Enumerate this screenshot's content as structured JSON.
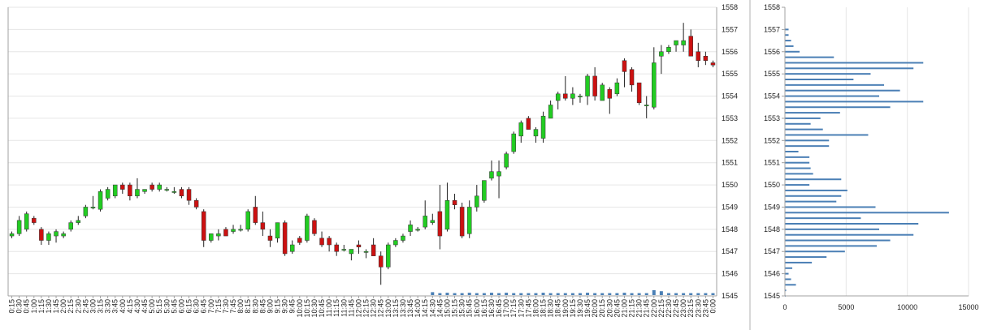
{
  "chart_data": [
    {
      "type": "candlestick",
      "title": "",
      "xlabel": "",
      "ylabel": "",
      "ylim": [
        1545,
        1558
      ],
      "yticks": [
        1545,
        1546,
        1547,
        1548,
        1549,
        1550,
        1551,
        1552,
        1553,
        1554,
        1555,
        1556,
        1557,
        1558
      ],
      "grid": true,
      "colors": {
        "up": "#22cc22",
        "down": "#cc1111",
        "wick": "#222222",
        "volume": "#4a7fb5"
      },
      "times": [
        "0:15",
        "0:30",
        "0:45",
        "1:00",
        "1:15",
        "1:30",
        "1:45",
        "2:00",
        "2:15",
        "2:30",
        "2:45",
        "3:00",
        "3:15",
        "3:30",
        "3:45",
        "4:00",
        "4:15",
        "4:30",
        "4:45",
        "5:00",
        "5:15",
        "5:30",
        "5:45",
        "6:00",
        "6:15",
        "6:30",
        "6:45",
        "7:00",
        "7:15",
        "7:30",
        "7:45",
        "8:00",
        "8:15",
        "8:30",
        "8:45",
        "9:00",
        "9:15",
        "9:30",
        "9:45",
        "10:00",
        "10:15",
        "10:30",
        "10:45",
        "11:00",
        "11:15",
        "11:30",
        "11:45",
        "12:00",
        "12:15",
        "12:30",
        "12:45",
        "13:00",
        "13:15",
        "13:30",
        "13:45",
        "14:00",
        "14:15",
        "14:30",
        "14:45",
        "15:00",
        "15:15",
        "15:30",
        "15:45",
        "16:00",
        "16:15",
        "16:30",
        "16:45",
        "17:00",
        "17:15",
        "17:30",
        "17:45",
        "18:00",
        "18:15",
        "18:30",
        "18:45",
        "19:00",
        "19:15",
        "19:30",
        "19:45",
        "20:00",
        "20:15",
        "20:30",
        "20:45",
        "21:00",
        "21:15",
        "21:30",
        "21:45",
        "22:00",
        "22:15",
        "22:30",
        "22:45",
        "23:00",
        "23:15",
        "23:30",
        "23:45",
        "0:00"
      ],
      "ohlc": [
        [
          1547.7,
          1547.9,
          1547.6,
          1547.8
        ],
        [
          1547.8,
          1548.6,
          1547.7,
          1548.4
        ],
        [
          1548.0,
          1548.8,
          1547.9,
          1548.7
        ],
        [
          1548.5,
          1548.6,
          1548.2,
          1548.3
        ],
        [
          1548.0,
          1548.1,
          1547.3,
          1547.5
        ],
        [
          1547.5,
          1547.9,
          1547.3,
          1547.8
        ],
        [
          1547.7,
          1548.0,
          1547.4,
          1547.9
        ],
        [
          1547.7,
          1547.9,
          1547.6,
          1547.8
        ],
        [
          1548.0,
          1548.4,
          1547.9,
          1548.3
        ],
        [
          1548.3,
          1548.6,
          1548.2,
          1548.4
        ],
        [
          1548.6,
          1549.1,
          1548.5,
          1549.0
        ],
        [
          1549.0,
          1549.5,
          1548.9,
          1549.0
        ],
        [
          1548.9,
          1549.8,
          1548.8,
          1549.7
        ],
        [
          1549.4,
          1549.9,
          1549.3,
          1549.8
        ],
        [
          1549.5,
          1550.0,
          1549.4,
          1550.0
        ],
        [
          1550.0,
          1550.1,
          1549.6,
          1549.8
        ],
        [
          1550.0,
          1550.1,
          1549.3,
          1549.5
        ],
        [
          1549.5,
          1550.3,
          1549.4,
          1549.8
        ],
        [
          1549.7,
          1549.8,
          1549.6,
          1549.8
        ],
        [
          1550.0,
          1550.1,
          1549.7,
          1549.8
        ],
        [
          1549.8,
          1550.1,
          1549.7,
          1550.0
        ],
        [
          1549.8,
          1549.9,
          1549.7,
          1549.8
        ],
        [
          1549.7,
          1549.9,
          1549.6,
          1549.7
        ],
        [
          1549.8,
          1549.9,
          1549.4,
          1549.5
        ],
        [
          1549.8,
          1549.9,
          1549.1,
          1549.3
        ],
        [
          1549.3,
          1549.4,
          1548.9,
          1549.0
        ],
        [
          1548.8,
          1548.9,
          1547.2,
          1547.5
        ],
        [
          1547.5,
          1547.8,
          1547.4,
          1547.8
        ],
        [
          1547.7,
          1548.0,
          1547.5,
          1547.8
        ],
        [
          1548.0,
          1548.1,
          1547.7,
          1547.7
        ],
        [
          1547.9,
          1548.2,
          1547.8,
          1548.0
        ],
        [
          1548.0,
          1548.2,
          1547.9,
          1548.0
        ],
        [
          1548.0,
          1548.9,
          1547.9,
          1548.8
        ],
        [
          1549.0,
          1549.5,
          1548.2,
          1548.3
        ],
        [
          1548.3,
          1548.8,
          1547.7,
          1548.0
        ],
        [
          1547.7,
          1548.0,
          1547.2,
          1547.5
        ],
        [
          1547.6,
          1548.3,
          1547.4,
          1548.3
        ],
        [
          1548.3,
          1548.4,
          1546.8,
          1546.9
        ],
        [
          1547.0,
          1547.5,
          1546.9,
          1547.3
        ],
        [
          1547.6,
          1547.7,
          1547.3,
          1547.4
        ],
        [
          1547.5,
          1548.7,
          1547.4,
          1548.6
        ],
        [
          1548.4,
          1548.5,
          1547.7,
          1547.8
        ],
        [
          1547.6,
          1547.9,
          1547.2,
          1547.3
        ],
        [
          1547.6,
          1547.7,
          1547.0,
          1547.3
        ],
        [
          1547.3,
          1547.4,
          1546.8,
          1547.0
        ],
        [
          1547.1,
          1547.3,
          1547.0,
          1547.1
        ],
        [
          1546.9,
          1547.1,
          1546.6,
          1547.1
        ],
        [
          1547.3,
          1547.5,
          1546.9,
          1547.2
        ],
        [
          1547.0,
          1547.1,
          1546.7,
          1547.0
        ],
        [
          1547.3,
          1547.6,
          1546.9,
          1546.8
        ],
        [
          1546.8,
          1547.0,
          1545.5,
          1546.3
        ],
        [
          1546.3,
          1547.4,
          1546.2,
          1547.3
        ],
        [
          1547.3,
          1547.6,
          1547.2,
          1547.5
        ],
        [
          1547.5,
          1547.8,
          1547.4,
          1547.7
        ],
        [
          1547.9,
          1548.4,
          1547.7,
          1548.2
        ],
        [
          1548.0,
          1548.1,
          1547.9,
          1548.0
        ],
        [
          1548.1,
          1549.3,
          1548.0,
          1548.6
        ],
        [
          1548.3,
          1548.7,
          1548.2,
          1548.4
        ],
        [
          1548.8,
          1550.0,
          1547.1,
          1547.7
        ],
        [
          1548.0,
          1550.1,
          1547.9,
          1549.3
        ],
        [
          1549.3,
          1549.6,
          1548.9,
          1549.1
        ],
        [
          1549.0,
          1549.2,
          1547.6,
          1547.7
        ],
        [
          1547.8,
          1549.3,
          1547.6,
          1549.0
        ],
        [
          1549.0,
          1550.0,
          1548.8,
          1549.5
        ],
        [
          1549.3,
          1550.2,
          1549.2,
          1550.2
        ],
        [
          1550.3,
          1551.1,
          1550.2,
          1550.6
        ],
        [
          1550.4,
          1551.1,
          1549.4,
          1550.6
        ],
        [
          1550.8,
          1551.5,
          1550.7,
          1551.4
        ],
        [
          1551.5,
          1552.4,
          1551.4,
          1552.3
        ],
        [
          1552.2,
          1552.9,
          1551.9,
          1552.8
        ],
        [
          1553.0,
          1553.1,
          1552.5,
          1552.5
        ],
        [
          1552.2,
          1552.6,
          1551.9,
          1552.5
        ],
        [
          1552.1,
          1553.3,
          1551.9,
          1553.1
        ],
        [
          1553.0,
          1553.8,
          1553.0,
          1553.6
        ],
        [
          1553.8,
          1554.2,
          1553.4,
          1554.1
        ],
        [
          1554.1,
          1554.9,
          1553.8,
          1553.9
        ],
        [
          1553.9,
          1554.4,
          1553.6,
          1554.1
        ],
        [
          1554.0,
          1554.1,
          1553.7,
          1554.0
        ],
        [
          1554.0,
          1555.0,
          1553.6,
          1554.9
        ],
        [
          1554.9,
          1555.3,
          1553.8,
          1554.0
        ],
        [
          1553.8,
          1554.6,
          1553.8,
          1554.5
        ],
        [
          1554.3,
          1554.4,
          1553.2,
          1553.9
        ],
        [
          1554.1,
          1554.8,
          1554.0,
          1554.6
        ],
        [
          1555.6,
          1555.7,
          1554.4,
          1555.1
        ],
        [
          1555.2,
          1555.3,
          1554.2,
          1554.5
        ],
        [
          1554.6,
          1554.6,
          1553.6,
          1553.7
        ],
        [
          1553.6,
          1554.0,
          1553.0,
          1553.6
        ],
        [
          1553.5,
          1556.2,
          1553.4,
          1555.5
        ],
        [
          1555.8,
          1556.3,
          1555.0,
          1556.0
        ],
        [
          1556.0,
          1556.3,
          1555.9,
          1556.2
        ],
        [
          1556.3,
          1556.5,
          1556.0,
          1556.5
        ],
        [
          1556.3,
          1557.3,
          1556.0,
          1556.5
        ],
        [
          1556.7,
          1557.0,
          1555.8,
          1555.8
        ],
        [
          1556.0,
          1556.4,
          1555.3,
          1555.6
        ],
        [
          1555.8,
          1556.0,
          1555.4,
          1555.6
        ],
        [
          1555.5,
          1555.6,
          1555.3,
          1555.4
        ]
      ],
      "volume": [
        0,
        0,
        0,
        0,
        0,
        0,
        0,
        0,
        0,
        0,
        0,
        0,
        0,
        0,
        0,
        0,
        0,
        0,
        0,
        0,
        0,
        0,
        0,
        0,
        0,
        0,
        0,
        0,
        0,
        0,
        0,
        0,
        0,
        0,
        0,
        0,
        0,
        0,
        0,
        0,
        0,
        0,
        0,
        0,
        0,
        0,
        0,
        0,
        0,
        0,
        0,
        0,
        0,
        0,
        0,
        0,
        0,
        0.15,
        0.1,
        0.12,
        0.1,
        0.1,
        0.12,
        0.1,
        0.1,
        0.12,
        0.1,
        0.12,
        0.1,
        0.1,
        0.1,
        0.1,
        0.12,
        0.1,
        0.1,
        0.1,
        0.1,
        0.1,
        0.12,
        0.1,
        0.1,
        0.1,
        0.1,
        0.12,
        0.1,
        0.1,
        0.1,
        0.25,
        0.2,
        0.1,
        0.1,
        0.1,
        0.1,
        0.1,
        0.1,
        0.1
      ]
    },
    {
      "type": "bar",
      "orientation": "horizontal",
      "title": "",
      "xlabel": "",
      "ylabel": "",
      "xlim": [
        0,
        15000
      ],
      "xticks": [
        0,
        5000,
        10000,
        15000
      ],
      "ylim": [
        1545,
        1558
      ],
      "yticks": [
        1545,
        1546,
        1547,
        1548,
        1549,
        1550,
        1551,
        1552,
        1553,
        1554,
        1555,
        1556,
        1557,
        1558
      ],
      "grid": true,
      "color": "#4a7fb5",
      "prices": [
        1545.0,
        1545.25,
        1545.5,
        1545.75,
        1546.0,
        1546.25,
        1546.5,
        1546.75,
        1547.0,
        1547.25,
        1547.5,
        1547.75,
        1548.0,
        1548.25,
        1548.5,
        1548.75,
        1549.0,
        1549.25,
        1549.5,
        1549.75,
        1550.0,
        1550.25,
        1550.5,
        1550.75,
        1551.0,
        1551.25,
        1551.5,
        1551.75,
        1552.0,
        1552.25,
        1552.5,
        1552.75,
        1553.0,
        1553.25,
        1553.5,
        1553.75,
        1554.0,
        1554.25,
        1554.5,
        1554.75,
        1555.0,
        1555.25,
        1555.5,
        1555.75,
        1556.0,
        1556.25,
        1556.5,
        1556.75,
        1557.0,
        1557.25,
        1557.5,
        1557.75,
        1558.0
      ],
      "values": [
        50,
        100,
        900,
        500,
        300,
        600,
        2200,
        3400,
        4900,
        7500,
        8600,
        10500,
        7700,
        10900,
        6200,
        13400,
        7400,
        4200,
        4600,
        5100,
        2000,
        4600,
        2300,
        2100,
        2000,
        2000,
        1100,
        3600,
        3600,
        6800,
        3100,
        2100,
        2900,
        4500,
        8600,
        11300,
        7700,
        9400,
        8100,
        5600,
        7000,
        10500,
        11300,
        4000,
        1200,
        700,
        500,
        300,
        300,
        0,
        0,
        0,
        0
      ]
    }
  ]
}
